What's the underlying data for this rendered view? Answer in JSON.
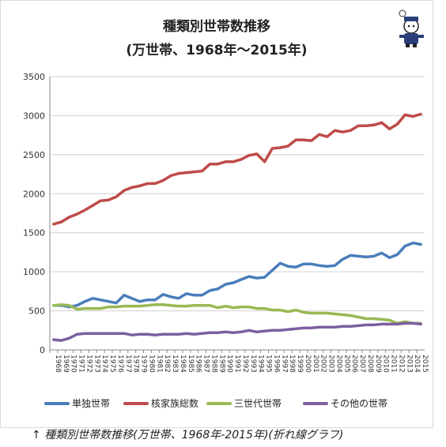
{
  "chart_data": {
    "type": "line",
    "title_line1": "種類別世帯数推移",
    "title_line2": "(万世帯、1968年～2015年)",
    "caption": "↑ 種類別世帯数推移(万世帯、1968年-2015年)(折れ線グラフ)",
    "ylim": [
      0,
      3500
    ],
    "yticks": [
      0,
      500,
      1000,
      1500,
      2000,
      2500,
      3000,
      3500
    ],
    "grid": true,
    "legend_position": "bottom",
    "x": [
      1968,
      1969,
      1970,
      1971,
      1972,
      1973,
      1974,
      1975,
      1976,
      1977,
      1978,
      1979,
      1980,
      1981,
      1982,
      1983,
      1984,
      1985,
      1986,
      1987,
      1988,
      1989,
      1990,
      1991,
      1992,
      1993,
      1994,
      1995,
      1996,
      1997,
      1998,
      1999,
      2000,
      2001,
      2002,
      2003,
      2004,
      2005,
      2006,
      2007,
      2008,
      2009,
      2010,
      2011,
      2012,
      2013,
      2014,
      2015
    ],
    "series": [
      {
        "name": "単独世帯",
        "color": "#4a7ebb",
        "values": [
          570,
          570,
          550,
          570,
          620,
          660,
          640,
          620,
          600,
          700,
          660,
          620,
          640,
          640,
          710,
          680,
          660,
          720,
          700,
          700,
          760,
          780,
          840,
          860,
          900,
          940,
          920,
          930,
          1020,
          1110,
          1070,
          1060,
          1100,
          1100,
          1080,
          1070,
          1080,
          1160,
          1210,
          1200,
          1190,
          1200,
          1240,
          1180,
          1220,
          1330,
          1370,
          1350
        ]
      },
      {
        "name": "核家族総数",
        "color": "#be4b48",
        "values": [
          1610,
          1640,
          1700,
          1740,
          1790,
          1850,
          1910,
          1920,
          1960,
          2040,
          2080,
          2100,
          2130,
          2130,
          2170,
          2230,
          2260,
          2270,
          2280,
          2290,
          2380,
          2380,
          2410,
          2410,
          2440,
          2490,
          2510,
          2410,
          2580,
          2590,
          2610,
          2690,
          2690,
          2680,
          2760,
          2730,
          2810,
          2790,
          2810,
          2870,
          2870,
          2880,
          2910,
          2830,
          2890,
          3010,
          2990,
          3020
        ]
      },
      {
        "name": "三世代世帯",
        "color": "#98b954",
        "values": [
          570,
          580,
          570,
          520,
          530,
          530,
          530,
          550,
          550,
          560,
          560,
          560,
          570,
          580,
          580,
          570,
          560,
          560,
          570,
          570,
          570,
          540,
          560,
          540,
          550,
          550,
          530,
          530,
          510,
          510,
          490,
          510,
          480,
          470,
          470,
          470,
          460,
          450,
          440,
          420,
          400,
          400,
          390,
          380,
          340,
          360,
          340,
          340
        ]
      },
      {
        "name": "その他の世帯",
        "color": "#7d5fa0",
        "values": [
          130,
          120,
          150,
          200,
          210,
          210,
          210,
          210,
          210,
          210,
          190,
          200,
          200,
          190,
          200,
          200,
          200,
          210,
          200,
          210,
          220,
          220,
          230,
          220,
          230,
          250,
          230,
          240,
          250,
          250,
          260,
          270,
          280,
          280,
          290,
          290,
          290,
          300,
          300,
          310,
          320,
          320,
          330,
          330,
          330,
          340,
          340,
          330
        ]
      }
    ]
  }
}
